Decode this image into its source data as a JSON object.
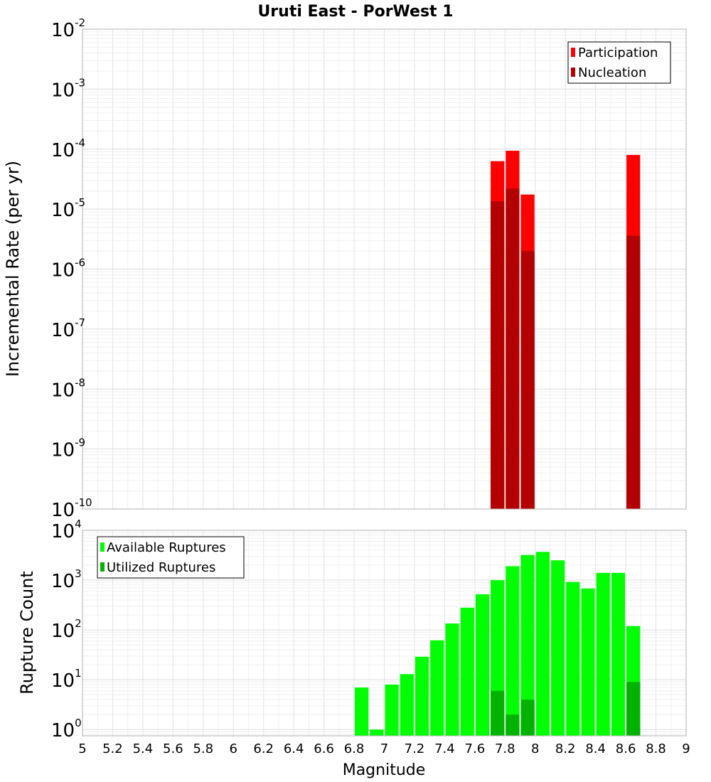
{
  "chart_data": [
    {
      "type": "bar",
      "title": "Uruti East - PorWest 1",
      "ylabel": "Incremental Rate (per yr)",
      "xlabel": "",
      "xlim": [
        5,
        9
      ],
      "ylim": [
        1e-10,
        0.01
      ],
      "yscale": "log",
      "ytick_exponents": [
        -10,
        -9,
        -8,
        -7,
        -6,
        -5,
        -4,
        -3,
        -2
      ],
      "grid": true,
      "legend_position": "top-right",
      "series": [
        {
          "name": "Participation",
          "color": "#ff0000",
          "x": [
            7.75,
            7.85,
            7.95,
            8.65
          ],
          "values": [
            6.3e-05,
            9.4e-05,
            1.75e-05,
            8e-05
          ]
        },
        {
          "name": "Nucleation",
          "color": "#b30000",
          "x": [
            7.75,
            7.85,
            7.95,
            8.65
          ],
          "values": [
            1.35e-05,
            2.2e-05,
            2e-06,
            3.6e-06
          ]
        }
      ]
    },
    {
      "type": "bar",
      "title": "",
      "ylabel": "Rupture Count",
      "xlabel": "Magnitude",
      "xlim": [
        5,
        9
      ],
      "ylim": [
        0.75,
        10000
      ],
      "yscale": "log",
      "ytick_exponents": [
        0,
        1,
        2,
        3,
        4
      ],
      "xticks": [
        "5",
        "5.2",
        "5.4",
        "5.6",
        "5.8",
        "6",
        "6.2",
        "6.4",
        "6.6",
        "6.8",
        "7",
        "7.2",
        "7.4",
        "7.6",
        "7.8",
        "8",
        "8.2",
        "8.4",
        "8.6",
        "8.8",
        "9"
      ],
      "grid": true,
      "legend_position": "top-left",
      "series": [
        {
          "name": "Available Ruptures",
          "color": "#00ff00",
          "x": [
            6.85,
            6.95,
            7.05,
            7.15,
            7.25,
            7.35,
            7.45,
            7.55,
            7.65,
            7.75,
            7.85,
            7.95,
            8.05,
            8.15,
            8.25,
            8.35,
            8.45,
            8.55,
            8.65
          ],
          "values": [
            7,
            1,
            8,
            13,
            29,
            62,
            135,
            280,
            520,
            1000,
            1900,
            3200,
            3700,
            2500,
            920,
            680,
            1400,
            1400,
            120
          ]
        },
        {
          "name": "Utilized Ruptures",
          "color": "#00b300",
          "x": [
            7.75,
            7.85,
            7.95,
            8.65
          ],
          "values": [
            6,
            2,
            4,
            9
          ]
        }
      ]
    }
  ]
}
